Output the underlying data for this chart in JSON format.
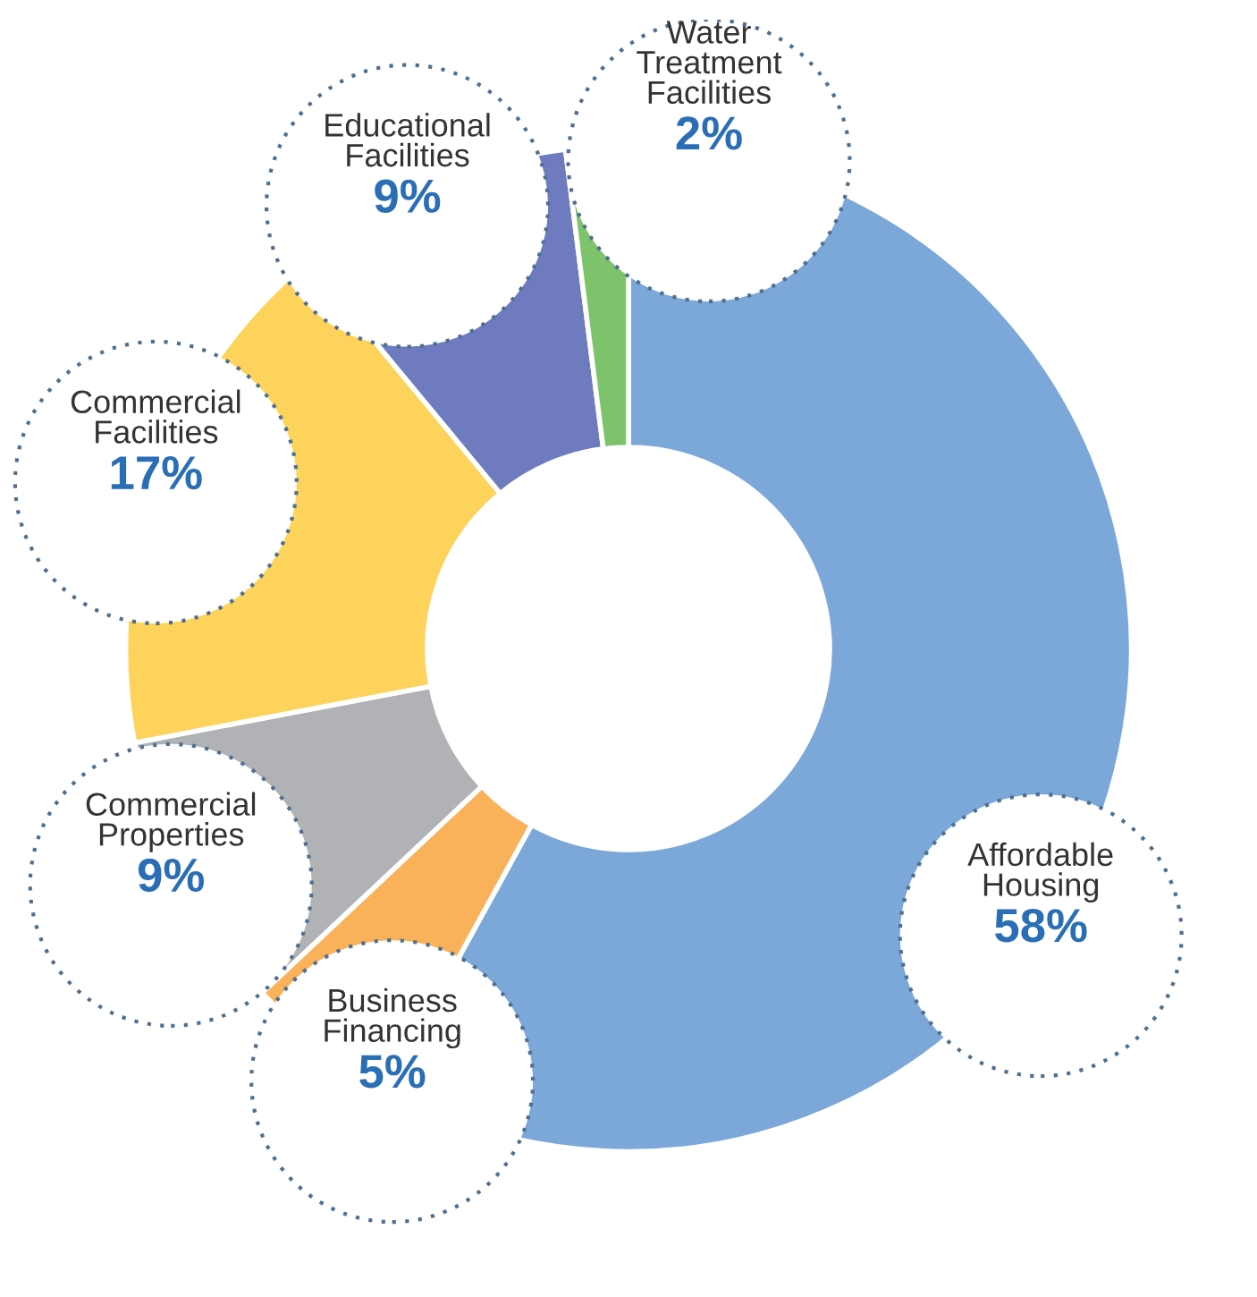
{
  "chart_data": {
    "type": "donut",
    "categories": [
      "Affordable\nHousing",
      "Business\nFinancing",
      "Commercial\nProperties",
      "Commercial\nFacilities",
      "Educational\nFacilities",
      "Water\nTreatment\nFacilities"
    ],
    "values": [
      58,
      5,
      9,
      17,
      9,
      2
    ],
    "colors": [
      "#7ba7d9",
      "#f9b25a",
      "#b1b2b5",
      "#fdd35c",
      "#6e7bbf",
      "#7dc36b"
    ],
    "value_labels": [
      "58%",
      "5%",
      "9%",
      "17%",
      "9%",
      "2%"
    ]
  }
}
